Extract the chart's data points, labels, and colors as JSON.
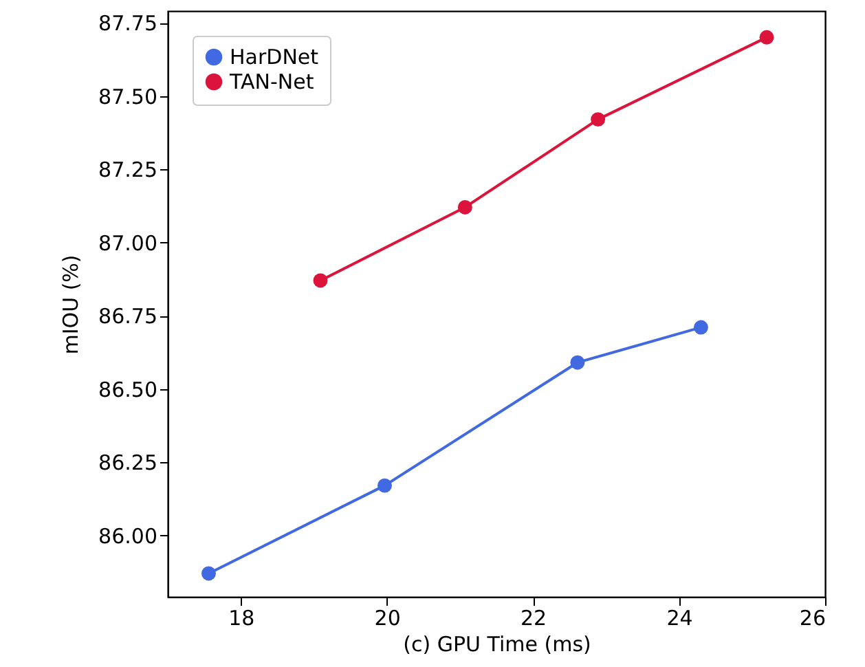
{
  "chart_data": {
    "type": "line",
    "xlabel": "(c) GPU Time (ms)",
    "ylabel": "mIOU (%)",
    "xlim": [
      17,
      26
    ],
    "xticks": [
      18,
      20,
      22,
      24,
      26
    ],
    "ylim": [
      85.79,
      87.79
    ],
    "yticks": [
      {
        "value": 86,
        "label": "86.00"
      },
      {
        "value": 86.25,
        "label": "86.25"
      },
      {
        "value": 86.5,
        "label": "86.50"
      },
      {
        "value": 86.75,
        "label": "86.75"
      },
      {
        "value": 87,
        "label": "87.00"
      },
      {
        "value": 87.25,
        "label": "87.25"
      },
      {
        "value": 87.5,
        "label": "87.50"
      },
      {
        "value": 87.75,
        "label": "87.75"
      }
    ],
    "grid": false,
    "legend": "top left",
    "marker": "circle",
    "series": [
      {
        "name": "HarDNet",
        "color": "#4169e1",
        "x": [
          17.56,
          19.97,
          22.61,
          24.3
        ],
        "values": [
          85.87,
          86.17,
          86.59,
          86.71
        ]
      },
      {
        "name": "TAN-Net",
        "color": "#dc143c",
        "x": [
          19.09,
          21.07,
          22.89,
          25.2
        ],
        "values": [
          86.87,
          87.12,
          87.42,
          87.7
        ]
      }
    ]
  }
}
